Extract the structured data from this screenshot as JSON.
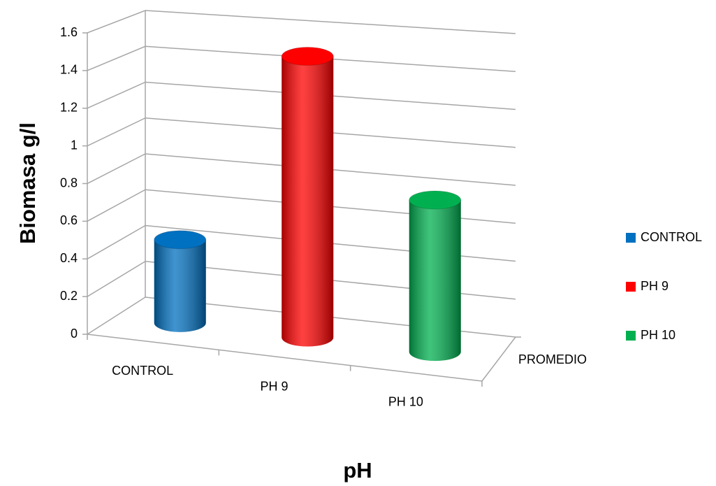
{
  "chart_data": {
    "type": "cylinder3d",
    "y_label": "Biomasa g/l",
    "x_label": "pH",
    "categories": [
      "PROMEDIO"
    ],
    "series": [
      {
        "name": "CONTROL",
        "color": "#0070c0",
        "values": [
          0.45
        ]
      },
      {
        "name": "PH 9",
        "color": "#ff0000",
        "values": [
          1.5
        ]
      },
      {
        "name": "PH 10",
        "color": "#00b050",
        "values": [
          0.8
        ]
      }
    ],
    "ylim": [
      0,
      1.6
    ],
    "yticks": [
      0,
      0.2,
      0.4,
      0.6,
      0.8,
      1,
      1.2,
      1.4,
      1.6
    ],
    "grid": true,
    "legend": "right"
  }
}
